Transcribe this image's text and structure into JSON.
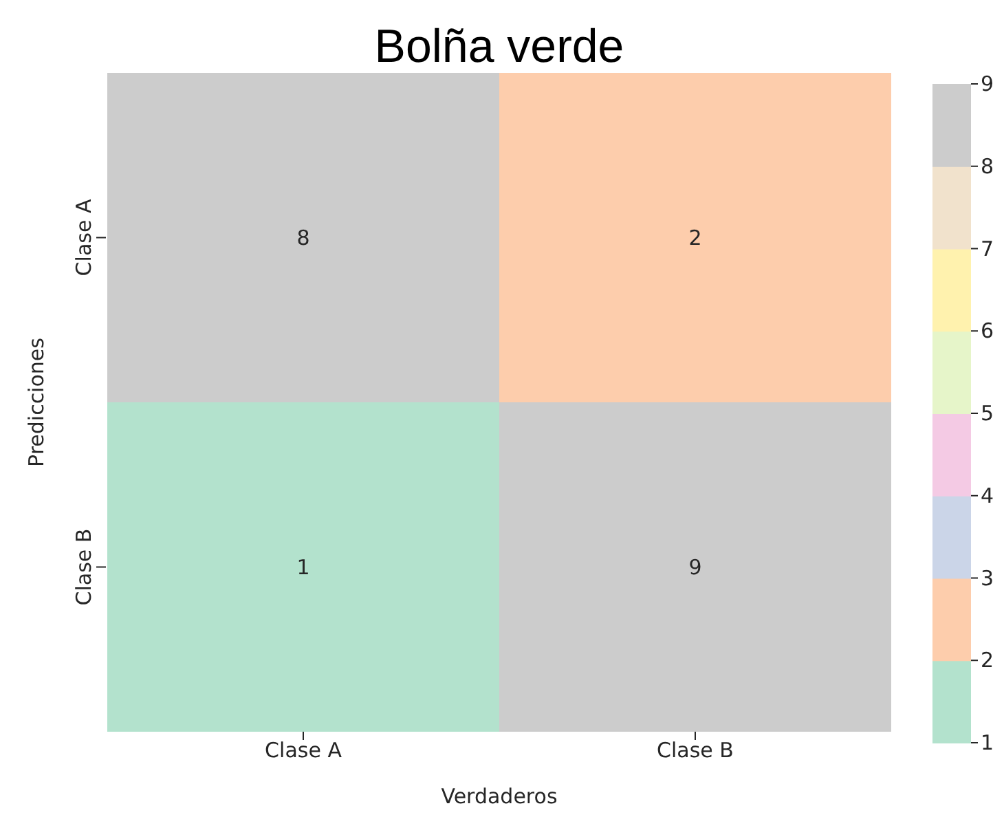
{
  "chart_data": {
    "type": "heatmap",
    "title": "Bolña verde",
    "xlabel": "Verdaderos",
    "ylabel": "Predicciones",
    "categories": [
      "Clase A",
      "Clase B"
    ],
    "y_categories": [
      "Clase A",
      "Clase B"
    ],
    "cells": [
      [
        8,
        2
      ],
      [
        1,
        9
      ]
    ],
    "data_labels": true,
    "clim": [
      1,
      9
    ],
    "cticks": [
      1,
      2,
      3,
      4,
      5,
      6,
      7,
      8,
      9
    ]
  }
}
